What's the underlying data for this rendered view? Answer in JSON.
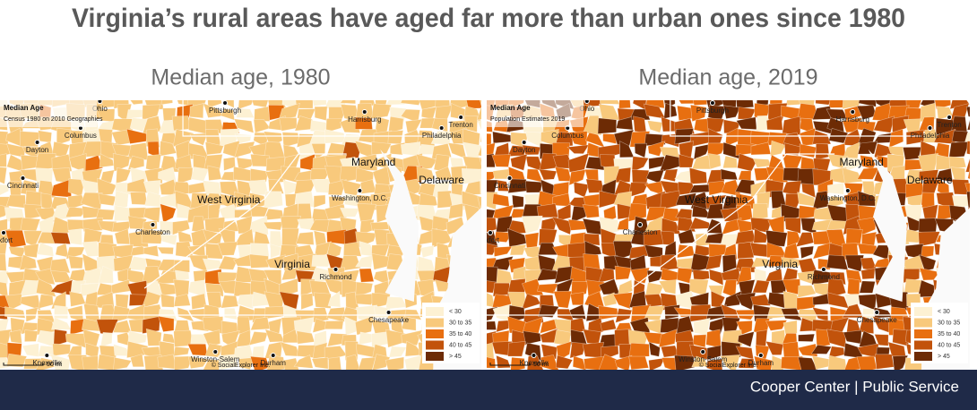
{
  "title": "Virginia’s rural areas have aged far more than urban ones since 1980",
  "maps": [
    {
      "subtitle": "Median age, 1980",
      "legend_title": "Median Age",
      "legend_note": "Census 1980 on 2010 Geographies"
    },
    {
      "subtitle": "Median age, 2019",
      "legend_title": "Median Age",
      "legend_note": "Population Estimates 2019"
    }
  ],
  "legend": [
    {
      "label": "< 30",
      "color": "#fdf1d3"
    },
    {
      "label": "30 to 35",
      "color": "#f8c97c"
    },
    {
      "label": "35 to 40",
      "color": "#e86f10"
    },
    {
      "label": "40 to 45",
      "color": "#c2530b"
    },
    {
      "label": "> 45",
      "color": "#6d2b05"
    }
  ],
  "places": [
    "Ohio",
    "Pittsburgh",
    "Harrisburg",
    "Trenton",
    "Columbus",
    "Philadelphia",
    "Dayton",
    "Maryland",
    "Delaware",
    "Cincinnati",
    "Washington, D.C.",
    "West Virginia",
    "Charleston",
    "nkfort",
    "Virginia",
    "Richmond",
    "Chesapeake",
    "Knoxville",
    "Winston-Salem",
    "Durham"
  ],
  "scale_label": "50 mi",
  "credit": "© SocialExplorer Inc.",
  "footer": "Cooper Center | Public Service"
}
